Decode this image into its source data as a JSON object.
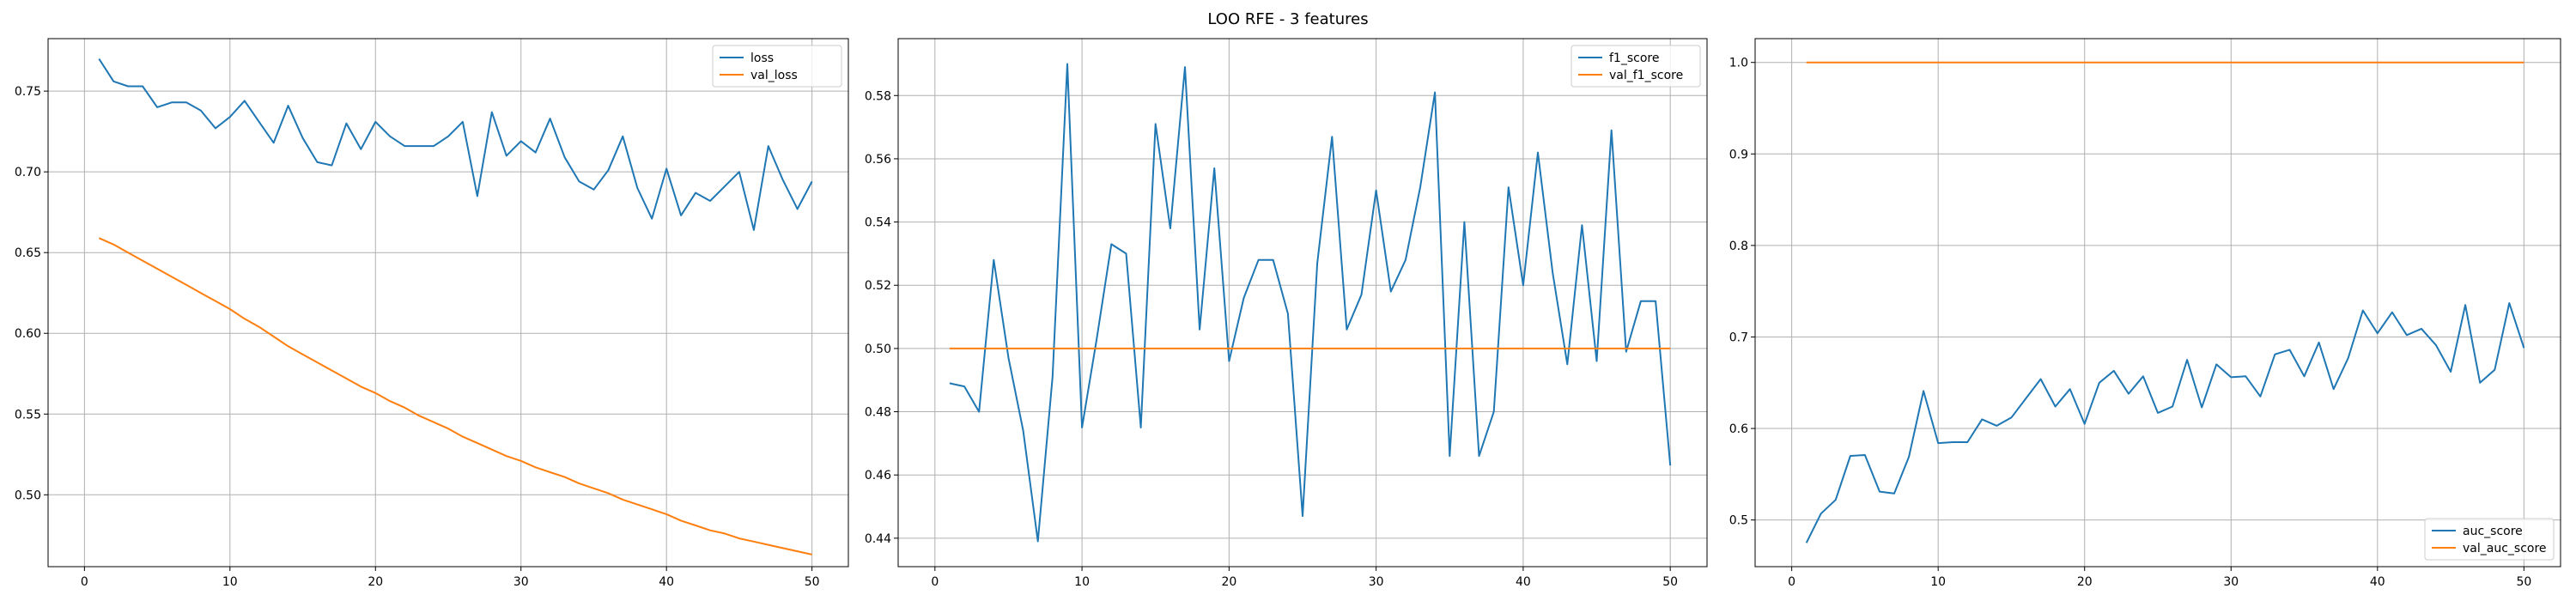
{
  "figure": {
    "title": "LOO RFE - 3 features"
  },
  "chart_data": [
    {
      "type": "line",
      "title": "",
      "xlabel": "",
      "ylabel": "",
      "grid": true,
      "legend_position": "top-right",
      "xlim": [
        -2.5,
        52.5
      ],
      "ylim": [
        0.4555,
        0.7825
      ],
      "xticks": [
        0,
        10,
        20,
        30,
        40,
        50
      ],
      "yticks": [
        0.5,
        0.55,
        0.6,
        0.65,
        0.7,
        0.75
      ],
      "ytick_labels": [
        "0.50",
        "0.55",
        "0.60",
        "0.65",
        "0.70",
        "0.75"
      ],
      "x": [
        1,
        2,
        3,
        4,
        5,
        6,
        7,
        8,
        9,
        10,
        11,
        12,
        13,
        14,
        15,
        16,
        17,
        18,
        19,
        20,
        21,
        22,
        23,
        24,
        25,
        26,
        27,
        28,
        29,
        30,
        31,
        32,
        33,
        34,
        35,
        36,
        37,
        38,
        39,
        40,
        41,
        42,
        43,
        44,
        45,
        46,
        47,
        48,
        49,
        50
      ],
      "series": [
        {
          "name": "loss",
          "color": "#1f77b4",
          "values": [
            0.77,
            0.756,
            0.753,
            0.753,
            0.74,
            0.743,
            0.743,
            0.738,
            0.727,
            0.734,
            0.744,
            0.731,
            0.718,
            0.741,
            0.721,
            0.706,
            0.704,
            0.73,
            0.714,
            0.731,
            0.722,
            0.716,
            0.716,
            0.716,
            0.722,
            0.731,
            0.685,
            0.737,
            0.71,
            0.719,
            0.712,
            0.733,
            0.709,
            0.694,
            0.689,
            0.701,
            0.722,
            0.69,
            0.671,
            0.702,
            0.673,
            0.687,
            0.682,
            0.691,
            0.7,
            0.664,
            0.716,
            0.695,
            0.677,
            0.694
          ]
        },
        {
          "name": "val_loss",
          "color": "#ff7f0e",
          "values": [
            0.659,
            0.655,
            0.65,
            0.645,
            0.64,
            0.635,
            0.63,
            0.625,
            0.62,
            0.615,
            0.609,
            0.604,
            0.598,
            0.592,
            0.587,
            0.582,
            0.577,
            0.572,
            0.567,
            0.563,
            0.558,
            0.554,
            0.549,
            0.545,
            0.541,
            0.536,
            0.532,
            0.528,
            0.524,
            0.521,
            0.517,
            0.514,
            0.511,
            0.507,
            0.504,
            0.501,
            0.497,
            0.494,
            0.491,
            0.488,
            0.484,
            0.481,
            0.478,
            0.476,
            0.473,
            0.471,
            0.469,
            0.467,
            0.465,
            0.463
          ]
        }
      ]
    },
    {
      "type": "line",
      "title": "",
      "xlabel": "",
      "ylabel": "",
      "grid": true,
      "legend_position": "top-right",
      "xlim": [
        -2.5,
        52.5
      ],
      "ylim": [
        0.431,
        0.598
      ],
      "xticks": [
        0,
        10,
        20,
        30,
        40,
        50
      ],
      "yticks": [
        0.44,
        0.46,
        0.48,
        0.5,
        0.52,
        0.54,
        0.56,
        0.58
      ],
      "ytick_labels": [
        "0.44",
        "0.46",
        "0.48",
        "0.50",
        "0.52",
        "0.54",
        "0.56",
        "0.58"
      ],
      "x": [
        1,
        2,
        3,
        4,
        5,
        6,
        7,
        8,
        9,
        10,
        11,
        12,
        13,
        14,
        15,
        16,
        17,
        18,
        19,
        20,
        21,
        22,
        23,
        24,
        25,
        26,
        27,
        28,
        29,
        30,
        31,
        32,
        33,
        34,
        35,
        36,
        37,
        38,
        39,
        40,
        41,
        42,
        43,
        44,
        45,
        46,
        47,
        48,
        49,
        50
      ],
      "series": [
        {
          "name": "f1_score",
          "color": "#1f77b4",
          "values": [
            0.489,
            0.488,
            0.48,
            0.528,
            0.497,
            0.474,
            0.439,
            0.491,
            0.59,
            0.475,
            0.503,
            0.533,
            0.53,
            0.475,
            0.571,
            0.538,
            0.589,
            0.506,
            0.557,
            0.496,
            0.516,
            0.528,
            0.528,
            0.511,
            0.447,
            0.527,
            0.567,
            0.506,
            0.517,
            0.55,
            0.518,
            0.528,
            0.551,
            0.581,
            0.466,
            0.54,
            0.466,
            0.48,
            0.551,
            0.52,
            0.562,
            0.524,
            0.495,
            0.539,
            0.496,
            0.569,
            0.499,
            0.515,
            0.515,
            0.463
          ]
        },
        {
          "name": "val_f1_score",
          "color": "#ff7f0e",
          "values": [
            0.5,
            0.5,
            0.5,
            0.5,
            0.5,
            0.5,
            0.5,
            0.5,
            0.5,
            0.5,
            0.5,
            0.5,
            0.5,
            0.5,
            0.5,
            0.5,
            0.5,
            0.5,
            0.5,
            0.5,
            0.5,
            0.5,
            0.5,
            0.5,
            0.5,
            0.5,
            0.5,
            0.5,
            0.5,
            0.5,
            0.5,
            0.5,
            0.5,
            0.5,
            0.5,
            0.5,
            0.5,
            0.5,
            0.5,
            0.5,
            0.5,
            0.5,
            0.5,
            0.5,
            0.5,
            0.5,
            0.5,
            0.5,
            0.5,
            0.5
          ]
        }
      ]
    },
    {
      "type": "line",
      "title": "",
      "xlabel": "",
      "ylabel": "",
      "grid": true,
      "legend_position": "bottom-right",
      "xlim": [
        -2.5,
        52.5
      ],
      "ylim": [
        0.449,
        1.026
      ],
      "xticks": [
        0,
        10,
        20,
        30,
        40,
        50
      ],
      "yticks": [
        0.5,
        0.6,
        0.7,
        0.8,
        0.9,
        1.0
      ],
      "ytick_labels": [
        "0.5",
        "0.6",
        "0.7",
        "0.8",
        "0.9",
        "1.0"
      ],
      "x": [
        1,
        2,
        3,
        4,
        5,
        6,
        7,
        8,
        9,
        10,
        11,
        12,
        13,
        14,
        15,
        16,
        17,
        18,
        19,
        20,
        21,
        22,
        23,
        24,
        25,
        26,
        27,
        28,
        29,
        30,
        31,
        32,
        33,
        34,
        35,
        36,
        37,
        38,
        39,
        40,
        41,
        42,
        43,
        44,
        45,
        46,
        47,
        48,
        49,
        50
      ],
      "series": [
        {
          "name": "auc_score",
          "color": "#1f77b4",
          "values": [
            0.475,
            0.507,
            0.522,
            0.57,
            0.571,
            0.531,
            0.529,
            0.569,
            0.641,
            0.584,
            0.585,
            0.585,
            0.61,
            0.603,
            0.612,
            0.633,
            0.654,
            0.624,
            0.643,
            0.605,
            0.65,
            0.663,
            0.638,
            0.657,
            0.617,
            0.624,
            0.675,
            0.623,
            0.67,
            0.656,
            0.657,
            0.635,
            0.681,
            0.686,
            0.657,
            0.694,
            0.643,
            0.677,
            0.729,
            0.704,
            0.727,
            0.702,
            0.709,
            0.691,
            0.662,
            0.735,
            0.65,
            0.664,
            0.737,
            0.688
          ]
        },
        {
          "name": "val_auc_score",
          "color": "#ff7f0e",
          "values": [
            1.0,
            1.0,
            1.0,
            1.0,
            1.0,
            1.0,
            1.0,
            1.0,
            1.0,
            1.0,
            1.0,
            1.0,
            1.0,
            1.0,
            1.0,
            1.0,
            1.0,
            1.0,
            1.0,
            1.0,
            1.0,
            1.0,
            1.0,
            1.0,
            1.0,
            1.0,
            1.0,
            1.0,
            1.0,
            1.0,
            1.0,
            1.0,
            1.0,
            1.0,
            1.0,
            1.0,
            1.0,
            1.0,
            1.0,
            1.0,
            1.0,
            1.0,
            1.0,
            1.0,
            1.0,
            1.0,
            1.0,
            1.0,
            1.0,
            1.0
          ]
        }
      ]
    }
  ]
}
